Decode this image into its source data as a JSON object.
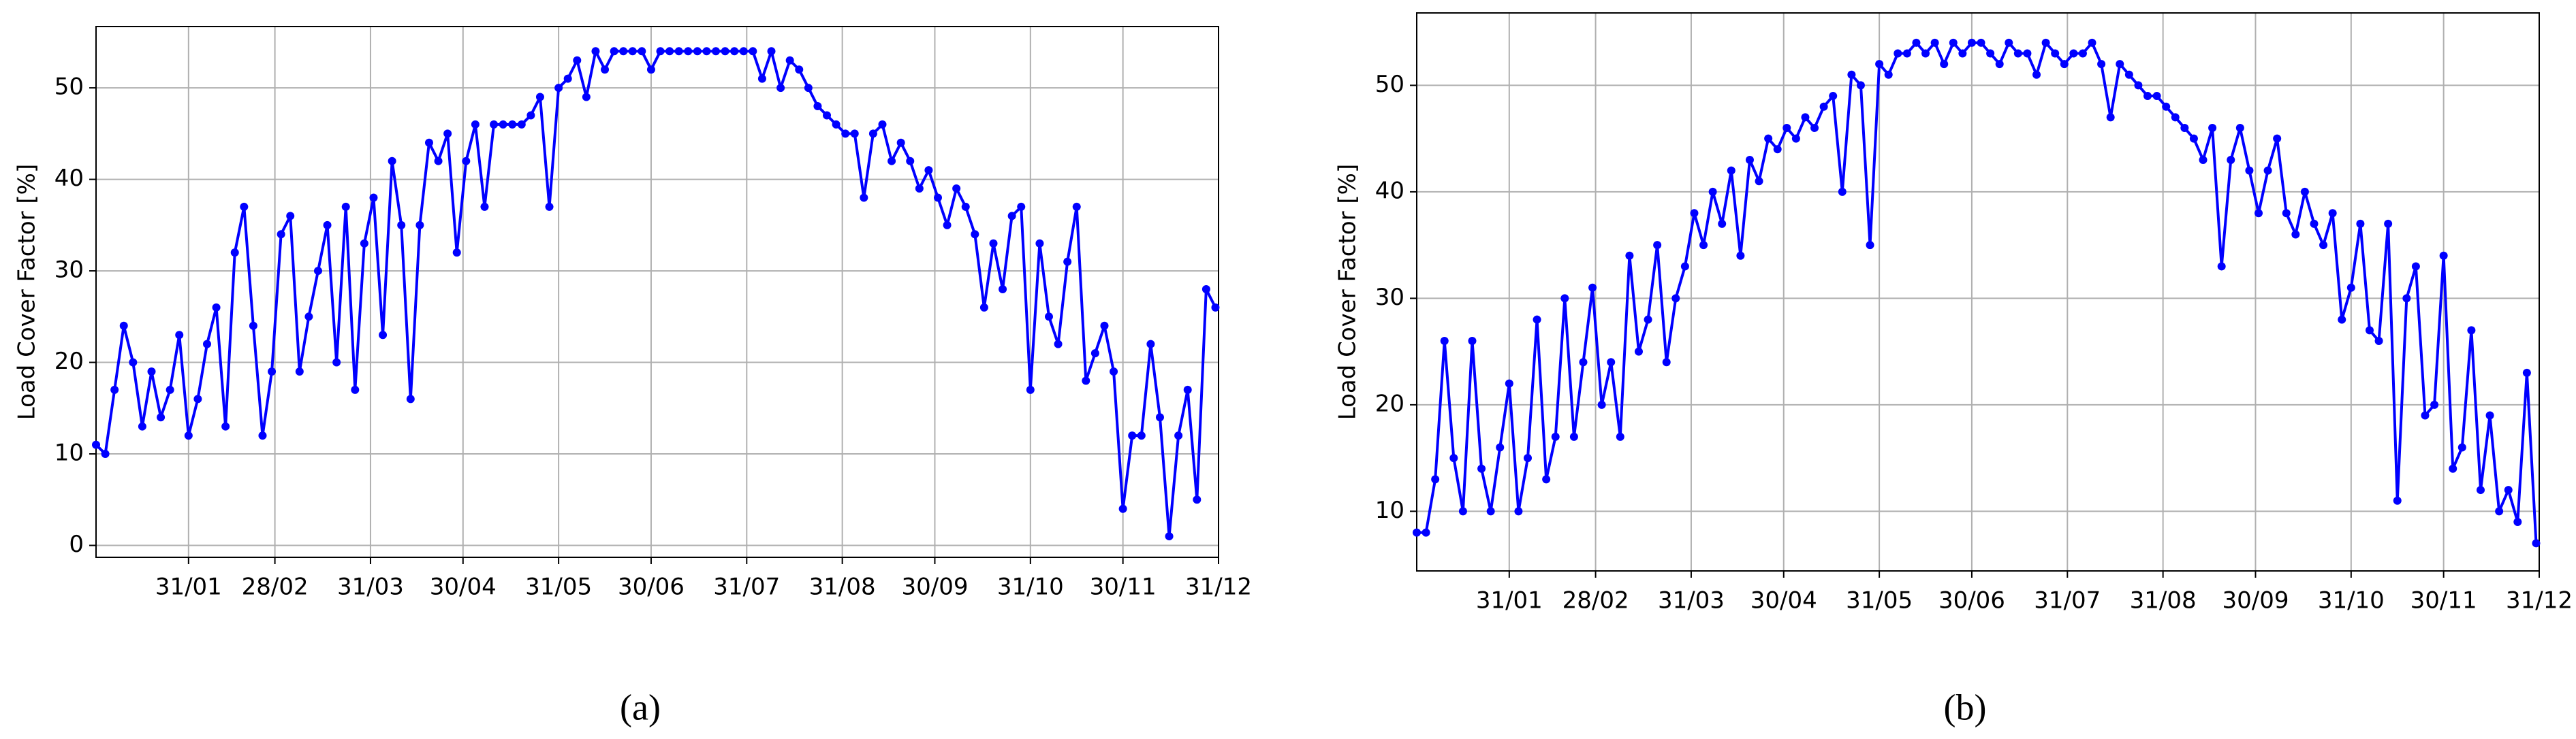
{
  "chart_data": [
    {
      "type": "line",
      "label": "(a)",
      "ylabel": "Load Cover Factor [%]",
      "color": "#0000ff",
      "grid": true,
      "xlim": [
        1,
        365
      ],
      "ylim": [
        -1.3,
        56.7
      ],
      "xticks": [
        {
          "value": 31,
          "label": "31/01"
        },
        {
          "value": 59,
          "label": "28/02"
        },
        {
          "value": 90,
          "label": "31/03"
        },
        {
          "value": 120,
          "label": "30/04"
        },
        {
          "value": 151,
          "label": "31/05"
        },
        {
          "value": 181,
          "label": "30/06"
        },
        {
          "value": 212,
          "label": "31/07"
        },
        {
          "value": 243,
          "label": "31/08"
        },
        {
          "value": 273,
          "label": "30/09"
        },
        {
          "value": 304,
          "label": "31/10"
        },
        {
          "value": 334,
          "label": "30/11"
        },
        {
          "value": 365,
          "label": "31/12"
        }
      ],
      "yticks": [
        0,
        10,
        20,
        30,
        40,
        50
      ],
      "x": [
        1,
        4,
        7,
        10,
        13,
        16,
        19,
        22,
        25,
        28,
        31,
        34,
        37,
        40,
        43,
        46,
        49,
        52,
        55,
        58,
        61,
        64,
        67,
        70,
        73,
        76,
        79,
        82,
        85,
        88,
        91,
        94,
        97,
        100,
        103,
        106,
        109,
        112,
        115,
        118,
        121,
        124,
        127,
        130,
        133,
        136,
        139,
        142,
        145,
        148,
        151,
        154,
        157,
        160,
        163,
        166,
        169,
        172,
        175,
        178,
        181,
        184,
        187,
        190,
        193,
        196,
        199,
        202,
        205,
        208,
        211,
        214,
        217,
        220,
        223,
        226,
        229,
        232,
        235,
        238,
        241,
        244,
        247,
        250,
        253,
        256,
        259,
        262,
        265,
        268,
        271,
        274,
        277,
        280,
        283,
        286,
        289,
        292,
        295,
        298,
        301,
        304,
        307,
        310,
        313,
        316,
        319,
        322,
        325,
        328,
        331,
        334,
        337,
        340,
        343,
        346,
        349,
        352,
        355,
        358,
        361,
        364
      ],
      "values": [
        11,
        10,
        17,
        24,
        20,
        13,
        19,
        14,
        17,
        23,
        12,
        16,
        22,
        26,
        13,
        32,
        37,
        24,
        12,
        19,
        34,
        36,
        19,
        25,
        30,
        35,
        20,
        37,
        17,
        33,
        38,
        23,
        42,
        35,
        16,
        35,
        44,
        42,
        45,
        32,
        42,
        46,
        37,
        46,
        46,
        46,
        46,
        47,
        49,
        37,
        50,
        51,
        53,
        49,
        54,
        52,
        54,
        54,
        54,
        54,
        52,
        54,
        54,
        54,
        54,
        54,
        54,
        54,
        54,
        54,
        54,
        54,
        51,
        54,
        50,
        53,
        52,
        50,
        48,
        47,
        46,
        45,
        45,
        38,
        45,
        46,
        42,
        44,
        42,
        39,
        41,
        38,
        35,
        39,
        37,
        34,
        26,
        33,
        28,
        36,
        37,
        17,
        33,
        25,
        22,
        31,
        37,
        18,
        21,
        24,
        19,
        4,
        12,
        12,
        22,
        14,
        1,
        12,
        17,
        5,
        28,
        26
      ]
    },
    {
      "type": "line",
      "label": "(b)",
      "ylabel": "Load Cover Factor [%]",
      "color": "#0000ff",
      "grid": true,
      "xlim": [
        1,
        365
      ],
      "ylim": [
        4.4,
        56.8
      ],
      "xticks": [
        {
          "value": 31,
          "label": "31/01"
        },
        {
          "value": 59,
          "label": "28/02"
        },
        {
          "value": 90,
          "label": "31/03"
        },
        {
          "value": 120,
          "label": "30/04"
        },
        {
          "value": 151,
          "label": "31/05"
        },
        {
          "value": 181,
          "label": "30/06"
        },
        {
          "value": 212,
          "label": "31/07"
        },
        {
          "value": 243,
          "label": "31/08"
        },
        {
          "value": 273,
          "label": "30/09"
        },
        {
          "value": 304,
          "label": "31/10"
        },
        {
          "value": 334,
          "label": "30/11"
        },
        {
          "value": 365,
          "label": "31/12"
        }
      ],
      "yticks": [
        10,
        20,
        30,
        40,
        50
      ],
      "x": [
        1,
        4,
        7,
        10,
        13,
        16,
        19,
        22,
        25,
        28,
        31,
        34,
        37,
        40,
        43,
        46,
        49,
        52,
        55,
        58,
        61,
        64,
        67,
        70,
        73,
        76,
        79,
        82,
        85,
        88,
        91,
        94,
        97,
        100,
        103,
        106,
        109,
        112,
        115,
        118,
        121,
        124,
        127,
        130,
        133,
        136,
        139,
        142,
        145,
        148,
        151,
        154,
        157,
        160,
        163,
        166,
        169,
        172,
        175,
        178,
        181,
        184,
        187,
        190,
        193,
        196,
        199,
        202,
        205,
        208,
        211,
        214,
        217,
        220,
        223,
        226,
        229,
        232,
        235,
        238,
        241,
        244,
        247,
        250,
        253,
        256,
        259,
        262,
        265,
        268,
        271,
        274,
        277,
        280,
        283,
        286,
        289,
        292,
        295,
        298,
        301,
        304,
        307,
        310,
        313,
        316,
        319,
        322,
        325,
        328,
        331,
        334,
        337,
        340,
        343,
        346,
        349,
        352,
        355,
        358,
        361,
        364
      ],
      "values": [
        8,
        8,
        13,
        26,
        15,
        10,
        26,
        14,
        10,
        16,
        22,
        10,
        15,
        28,
        13,
        17,
        30,
        17,
        24,
        31,
        20,
        24,
        17,
        34,
        25,
        28,
        35,
        24,
        30,
        33,
        38,
        35,
        40,
        37,
        42,
        34,
        43,
        41,
        45,
        44,
        46,
        45,
        47,
        46,
        48,
        49,
        40,
        51,
        50,
        35,
        52,
        51,
        53,
        53,
        54,
        53,
        54,
        52,
        54,
        53,
        54,
        54,
        53,
        52,
        54,
        53,
        53,
        51,
        54,
        53,
        52,
        53,
        53,
        54,
        52,
        47,
        52,
        51,
        50,
        49,
        49,
        48,
        47,
        46,
        45,
        43,
        46,
        33,
        43,
        46,
        42,
        38,
        42,
        45,
        38,
        36,
        40,
        37,
        35,
        38,
        28,
        31,
        37,
        27,
        26,
        37,
        11,
        30,
        33,
        19,
        20,
        34,
        14,
        16,
        27,
        12,
        19,
        10,
        12,
        9,
        23,
        7
      ]
    }
  ]
}
